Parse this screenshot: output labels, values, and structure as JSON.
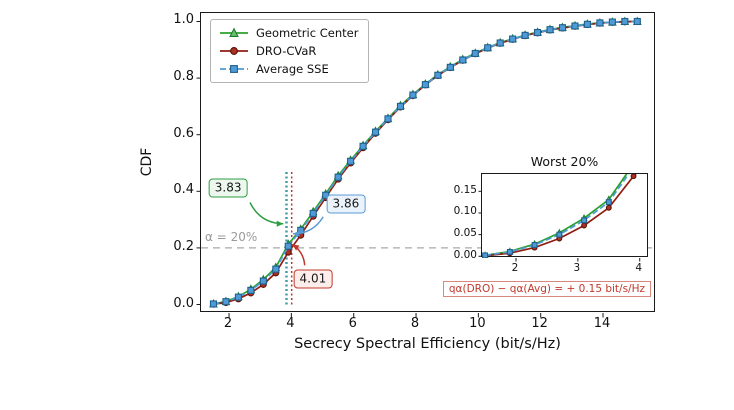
{
  "chart_data": {
    "type": "line",
    "title": "",
    "xlabel": "Secrecy Spectral Efficiency (bit/s/Hz)",
    "ylabel": "CDF",
    "xlim": [
      1.1,
      15.7
    ],
    "ylim": [
      -0.03,
      1.03
    ],
    "x_ticks": [
      2,
      4,
      6,
      8,
      10,
      12,
      14
    ],
    "y_ticks": [
      {
        "v": 0.0,
        "label": "0.0"
      },
      {
        "v": 0.2,
        "label": "0.2"
      },
      {
        "v": 0.4,
        "label": "0.4"
      },
      {
        "v": 0.6,
        "label": "0.6"
      },
      {
        "v": 0.8,
        "label": "0.8"
      },
      {
        "v": 1.0,
        "label": "1.0"
      }
    ],
    "x": [
      1.5,
      1.9,
      2.3,
      2.7,
      3.1,
      3.5,
      3.9,
      4.3,
      4.7,
      5.1,
      5.5,
      5.9,
      6.3,
      6.7,
      7.1,
      7.5,
      7.9,
      8.3,
      8.7,
      9.1,
      9.5,
      9.9,
      10.3,
      10.7,
      11.1,
      11.5,
      11.9,
      12.3,
      12.7,
      13.1,
      13.5,
      13.9,
      14.3,
      14.7,
      15.1
    ],
    "series": [
      {
        "name": "Geometric Center",
        "marker": "triangle",
        "color": "#2ca02c",
        "edge": "#1e7b34",
        "face": "#6abf69",
        "dash": null,
        "quantile_20": 3.83,
        "y": [
          0.002,
          0.011,
          0.028,
          0.054,
          0.088,
          0.131,
          0.213,
          0.266,
          0.328,
          0.391,
          0.455,
          0.51,
          0.562,
          0.612,
          0.658,
          0.703,
          0.742,
          0.779,
          0.812,
          0.84,
          0.866,
          0.888,
          0.908,
          0.925,
          0.939,
          0.952,
          0.962,
          0.972,
          0.979,
          0.985,
          0.991,
          0.995,
          0.998,
          1.0,
          1.0
        ]
      },
      {
        "name": "DRO-CVaR",
        "marker": "circle",
        "color": "#8f1d12",
        "edge": "#5d1007",
        "face": "#a93226",
        "dash": null,
        "quantile_20": 4.01,
        "y": [
          0.001,
          0.007,
          0.02,
          0.041,
          0.071,
          0.112,
          0.185,
          0.245,
          0.312,
          0.378,
          0.443,
          0.5,
          0.554,
          0.605,
          0.653,
          0.698,
          0.738,
          0.776,
          0.809,
          0.837,
          0.863,
          0.886,
          0.906,
          0.923,
          0.937,
          0.95,
          0.96,
          0.97,
          0.977,
          0.983,
          0.989,
          0.994,
          0.997,
          0.999,
          1.0
        ]
      },
      {
        "name": "Average SSE",
        "marker": "square",
        "color": "#4d9bd6",
        "edge": "#1f618d",
        "face": "#4f9bd8",
        "dash": "6,3",
        "quantile_20": 3.86,
        "y": [
          0.002,
          0.01,
          0.026,
          0.05,
          0.083,
          0.125,
          0.206,
          0.262,
          0.322,
          0.386,
          0.45,
          0.506,
          0.559,
          0.609,
          0.656,
          0.7,
          0.74,
          0.777,
          0.81,
          0.838,
          0.864,
          0.887,
          0.907,
          0.924,
          0.938,
          0.951,
          0.961,
          0.971,
          0.978,
          0.984,
          0.99,
          0.995,
          0.998,
          1.0,
          1.0
        ]
      }
    ],
    "alpha_line": {
      "y": 0.2,
      "label": "α = 20%"
    },
    "quantile_top": 0.47,
    "quantile_lines": [
      {
        "x": 3.83,
        "color": "#2ca02c"
      },
      {
        "x": 3.86,
        "color": "#4d9bd6"
      },
      {
        "x": 4.01,
        "color": "#b03a2e"
      }
    ],
    "annotations": [
      {
        "text": "3.83",
        "color": "#2e9e44",
        "bg": "#ecf7ed",
        "bx": 1.97,
        "by": 0.41,
        "tx": 3.74,
        "ty": 0.285,
        "bend": 12,
        "trim": 26
      },
      {
        "text": "3.86",
        "color": "#5b9bd5",
        "bg": "#eaf2fb",
        "bx": 5.75,
        "by": 0.355,
        "tx": 4.05,
        "ty": 0.25,
        "bend": -10,
        "trim": 26
      },
      {
        "text": "4.01",
        "color": "#c0392b",
        "bg": "#fdeeec",
        "bx": 4.69,
        "by": 0.09,
        "tx": 4.03,
        "ty": 0.212,
        "bend": 6,
        "trim": 16
      }
    ],
    "inset": {
      "title": "Worst 20%",
      "xlim": [
        1.45,
        4.15
      ],
      "ylim": [
        -0.004,
        0.19
      ],
      "x_ticks": [
        2,
        3,
        4
      ],
      "y_ticks": [
        {
          "v": 0.0,
          "label": "0.00"
        },
        {
          "v": 0.05,
          "label": "0.05"
        },
        {
          "v": 0.1,
          "label": "0.10"
        },
        {
          "v": 0.15,
          "label": "0.15"
        }
      ],
      "note": "qα(DRO) − qα(Avg) = + 0.15 bit/s/Hz"
    }
  }
}
